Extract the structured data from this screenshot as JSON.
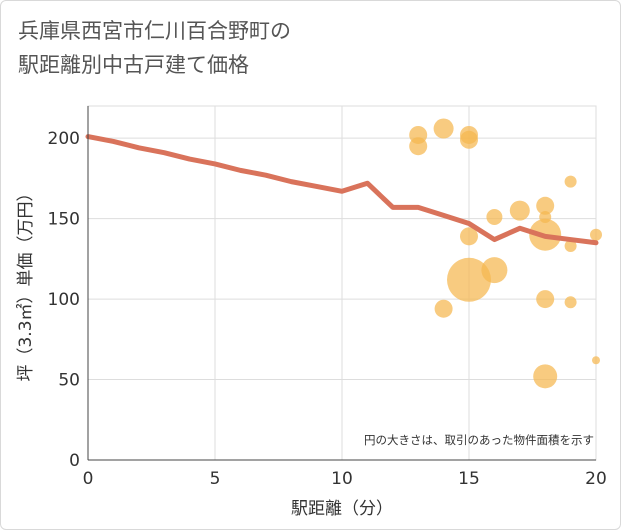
{
  "title_line1": "兵庫県西宮市仁川百合野町の",
  "title_line2": "駅距離別中古戸建て価格",
  "chart_data": {
    "type": "scatter",
    "title": "兵庫県西宮市仁川百合野町の駅距離別中古戸建て価格",
    "xlabel": "駅距離（分）",
    "ylabel": "坪（3.3㎡）単価（万円）",
    "xlim": [
      0,
      20
    ],
    "ylim": [
      0,
      220
    ],
    "xticks": [
      0,
      5,
      10,
      15,
      20
    ],
    "yticks": [
      0,
      50,
      100,
      150,
      200
    ],
    "grid": true,
    "note": "円の大きさは、取引のあった物件面積を示す",
    "colors": {
      "bubble": "#f5b74f",
      "line": "#d9735b",
      "grid": "#dddddd"
    },
    "bubbles": [
      {
        "x": 13,
        "y": 202,
        "size": 9
      },
      {
        "x": 13,
        "y": 195,
        "size": 9
      },
      {
        "x": 14,
        "y": 206,
        "size": 10
      },
      {
        "x": 15,
        "y": 202,
        "size": 9
      },
      {
        "x": 15,
        "y": 199,
        "size": 9
      },
      {
        "x": 14,
        "y": 94,
        "size": 9
      },
      {
        "x": 15,
        "y": 139,
        "size": 9
      },
      {
        "x": 15,
        "y": 112,
        "size": 22
      },
      {
        "x": 16,
        "y": 151,
        "size": 8
      },
      {
        "x": 16,
        "y": 118,
        "size": 13
      },
      {
        "x": 17,
        "y": 155,
        "size": 10
      },
      {
        "x": 18,
        "y": 158,
        "size": 9
      },
      {
        "x": 18,
        "y": 151,
        "size": 6
      },
      {
        "x": 18,
        "y": 140,
        "size": 16
      },
      {
        "x": 18,
        "y": 100,
        "size": 9
      },
      {
        "x": 18,
        "y": 52,
        "size": 12
      },
      {
        "x": 19,
        "y": 173,
        "size": 6
      },
      {
        "x": 19,
        "y": 133,
        "size": 6
      },
      {
        "x": 19,
        "y": 98,
        "size": 6
      },
      {
        "x": 20,
        "y": 140,
        "size": 6
      },
      {
        "x": 20,
        "y": 62,
        "size": 4
      }
    ],
    "line": {
      "x": [
        0,
        1,
        2,
        3,
        4,
        5,
        6,
        7,
        8,
        9,
        10,
        11,
        12,
        13,
        14,
        15,
        16,
        17,
        18,
        19,
        20
      ],
      "y": [
        201,
        198,
        194,
        191,
        187,
        184,
        180,
        177,
        173,
        170,
        167,
        172,
        157,
        157,
        152,
        147,
        137,
        144,
        139,
        137,
        135
      ]
    }
  }
}
